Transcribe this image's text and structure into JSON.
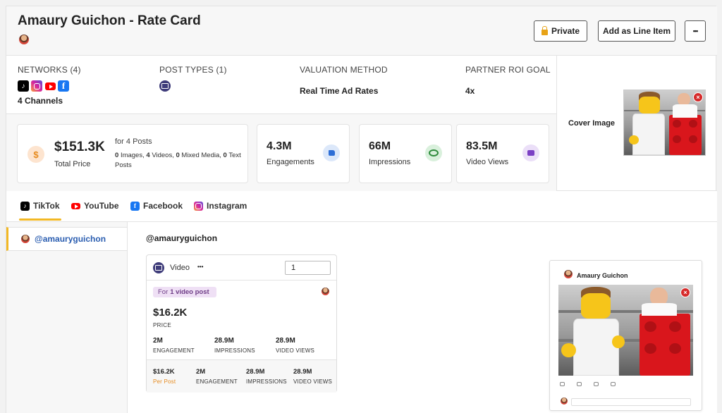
{
  "header": {
    "title": "Amaury Guichon - Rate Card",
    "buttons": {
      "private": "Private",
      "add_line_item": "Add as Line Item",
      "more": "•••"
    }
  },
  "summary": {
    "networks": {
      "label": "NETWORKS (4)",
      "icons": [
        "tiktok-icon",
        "instagram-icon",
        "youtube-icon",
        "facebook-icon"
      ],
      "channels": "4 Channels"
    },
    "post_types": {
      "label": "POST TYPES (1)",
      "icons": [
        "video-icon"
      ]
    },
    "valuation": {
      "label": "VALUATION METHOD",
      "value": "Real Time Ad Rates"
    },
    "roi": {
      "label": "PARTNER ROI GOAL",
      "value": "4x"
    },
    "price": {
      "value": "$151.3K",
      "label": "Total Price",
      "posts": "for 4 Posts",
      "images_count": "0",
      "images_label": "Images,",
      "videos_count": "4",
      "videos_label": "Videos,",
      "mixed_count": "0",
      "mixed_label": "Mixed Media,",
      "text_count": "0",
      "text_label": "Text Posts"
    },
    "engagements": {
      "value": "4.3M",
      "label": "Engagements"
    },
    "impressions": {
      "value": "66M",
      "label": "Impressions"
    },
    "video_views": {
      "value": "83.5M",
      "label": "Video Views"
    },
    "cover": {
      "label": "Cover Image"
    }
  },
  "tabs": [
    {
      "label": "TikTok",
      "active": true
    },
    {
      "label": "YouTube",
      "active": false
    },
    {
      "label": "Facebook",
      "active": false
    },
    {
      "label": "Instagram",
      "active": false
    }
  ],
  "accounts": [
    {
      "handle": "@amauryguichon"
    }
  ],
  "main": {
    "handle": "@amauryguichon",
    "post": {
      "type": "Video",
      "dots": "•••",
      "quantity": "1",
      "badge_prefix": "For",
      "badge_bold": "1 video post",
      "price": "$16.2K",
      "price_label": "PRICE",
      "metrics": [
        {
          "value": "2M",
          "label": "ENGAGEMENT"
        },
        {
          "value": "28.9M",
          "label": "IMPRESSIONS"
        },
        {
          "value": "28.9M",
          "label": "VIDEO VIEWS"
        }
      ],
      "footer": [
        {
          "value": "$16.2K",
          "label": "Per Post"
        },
        {
          "value": "2M",
          "label": "ENGAGEMENT"
        },
        {
          "value": "28.9M",
          "label": "IMPRESSIONS"
        },
        {
          "value": "28.9M",
          "label": "VIDEO VIEWS"
        }
      ]
    },
    "preview": {
      "name": "Amaury Guichon"
    }
  },
  "colors": {
    "accent": "#f2b824",
    "link": "#2a5db0",
    "per_post": "#e68a1e"
  }
}
